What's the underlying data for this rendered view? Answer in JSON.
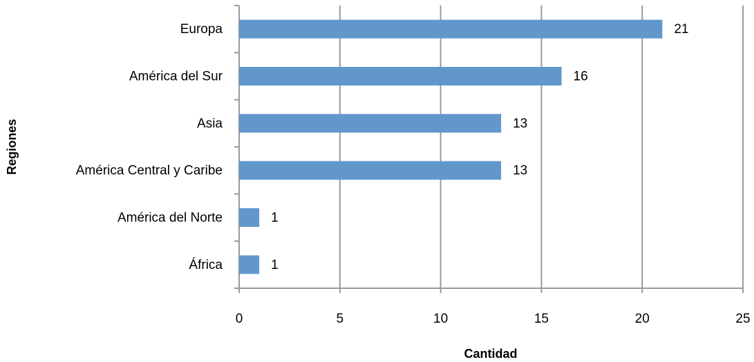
{
  "chart_data": {
    "type": "bar",
    "orientation": "horizontal",
    "x_label": "Cantidad",
    "y_label": "Regiones",
    "categories": [
      "Europa",
      "América del Sur",
      "Asia",
      "América Central y Caribe",
      "América del Norte",
      "África"
    ],
    "values": [
      21,
      16,
      13,
      13,
      1,
      1
    ],
    "color": "#6297cc",
    "xlim": [
      0,
      25
    ],
    "xticks": [
      0,
      5,
      10,
      15,
      20,
      25
    ],
    "grid": true
  }
}
